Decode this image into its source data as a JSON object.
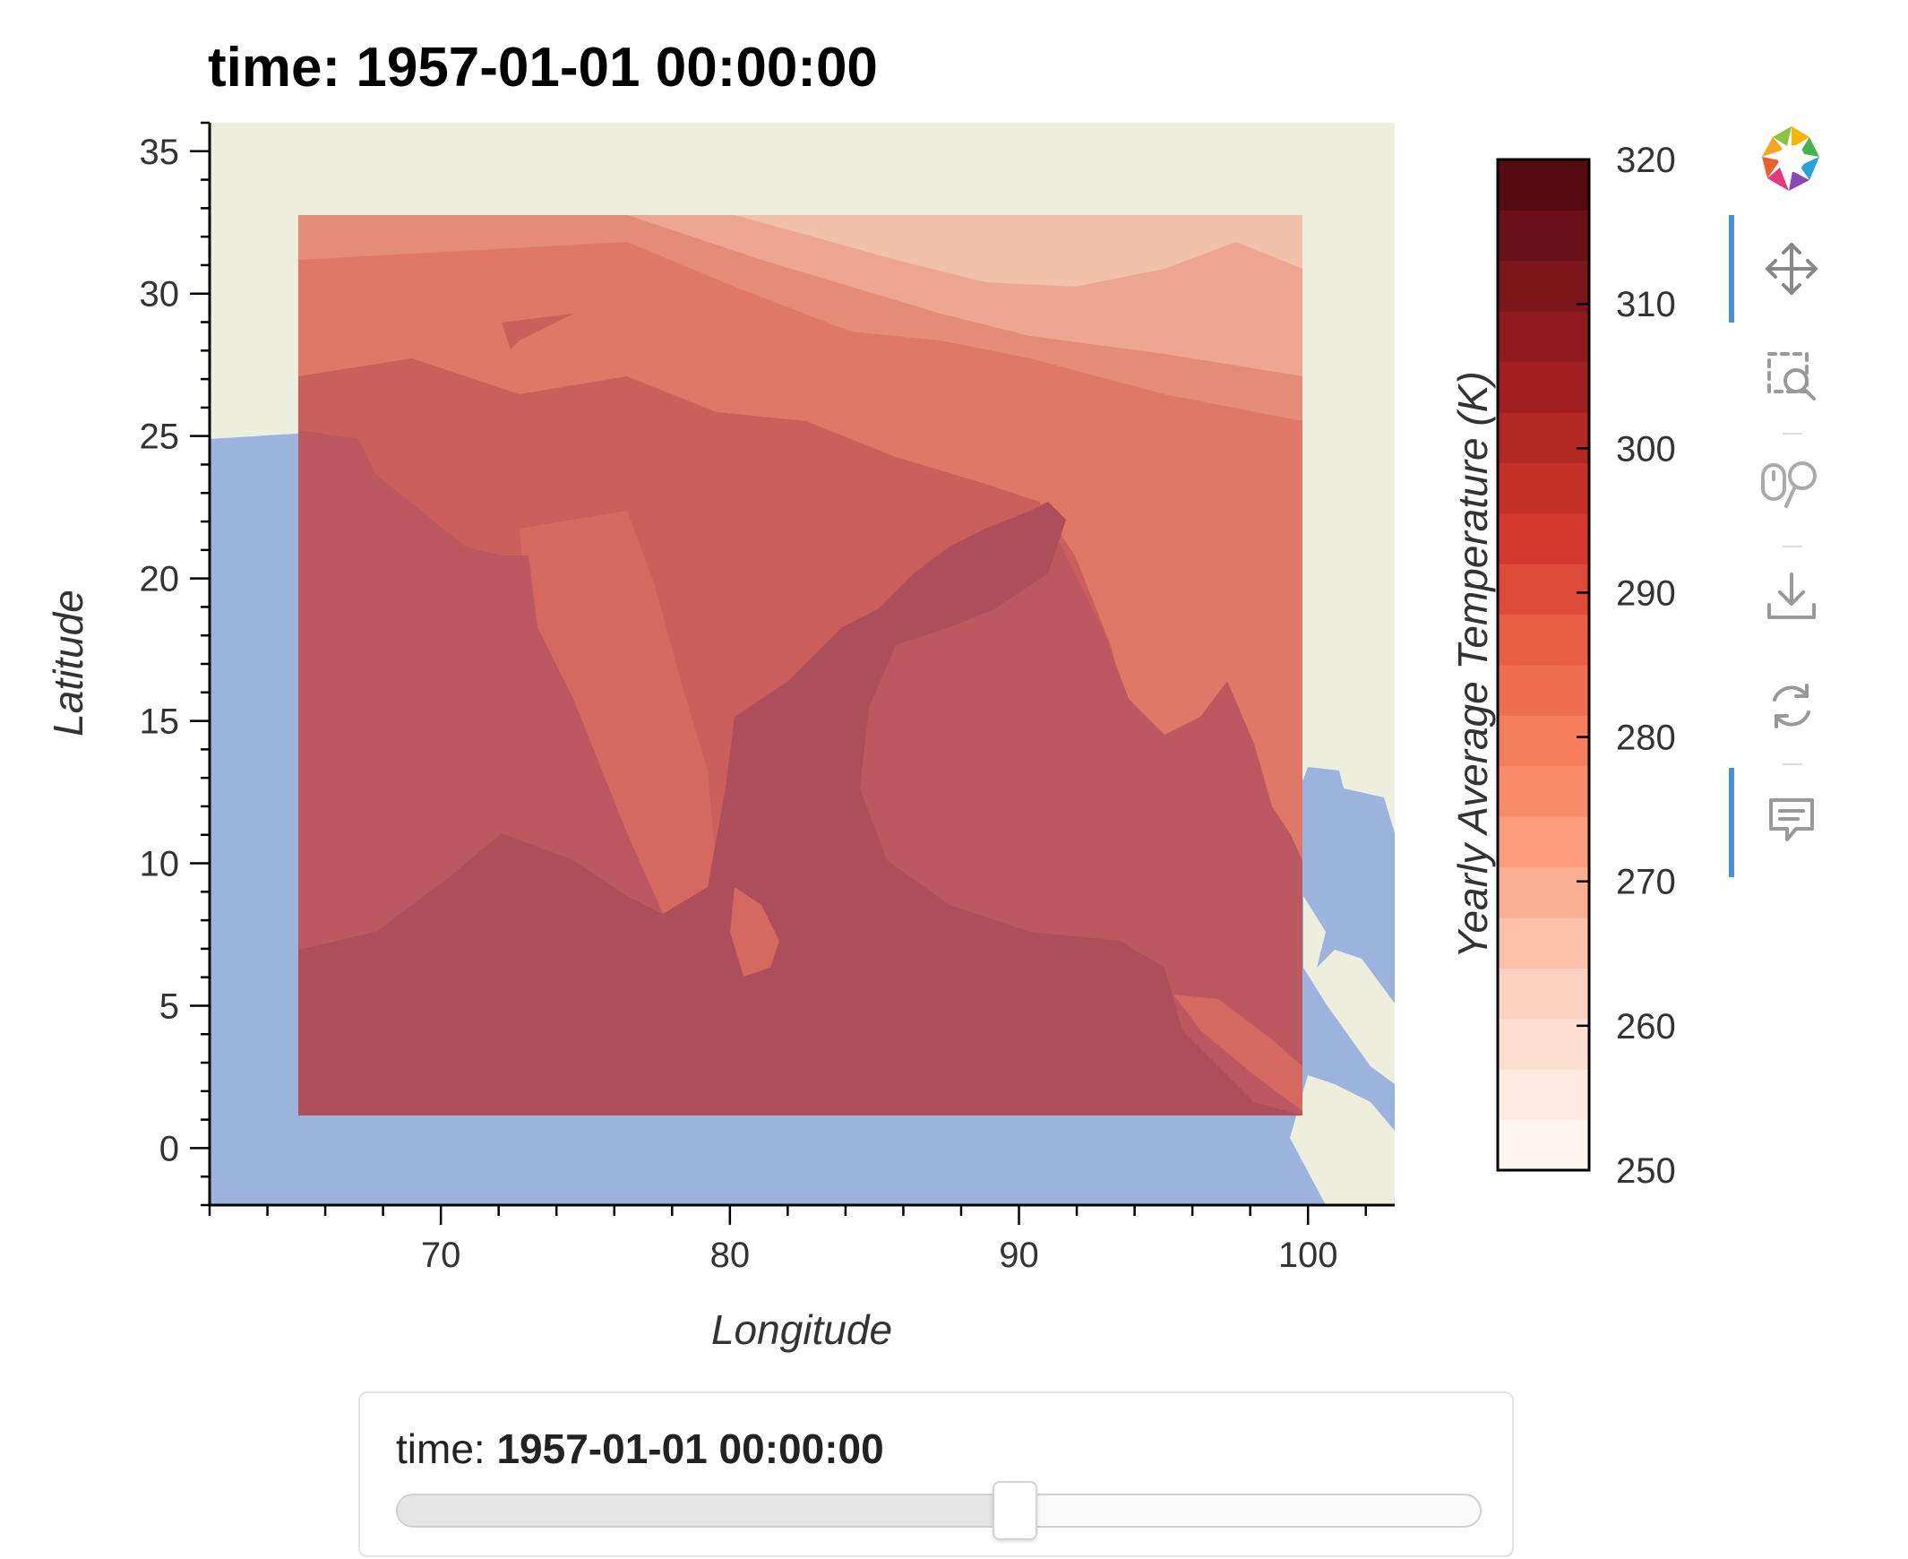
{
  "title": "time: 1957-01-01 00:00:00",
  "colors": {
    "land": "#eeeedf",
    "ocean": "#9cb3dd",
    "accent": "#4a90d9"
  },
  "toolbar": {
    "tools": [
      {
        "name": "bokeh-logo",
        "active": false
      },
      {
        "name": "pan-tool",
        "active": true
      },
      {
        "name": "box-zoom-tool",
        "active": false
      },
      {
        "name": "wheel-zoom-tool",
        "active": false
      },
      {
        "name": "save-tool",
        "active": false
      },
      {
        "name": "reset-tool",
        "active": false
      },
      {
        "name": "hover-tool",
        "active": true
      }
    ]
  },
  "slider": {
    "label": "time: ",
    "value": "1957-01-01 00:00:00",
    "position_fraction": 0.57
  },
  "chart_data": {
    "type": "heatmap",
    "subtype": "filled-contour map",
    "xlabel": "Longitude",
    "ylabel": "Latitude",
    "xlim": [
      62,
      103
    ],
    "ylim": [
      -2,
      36
    ],
    "xticks": [
      70,
      80,
      90,
      100
    ],
    "yticks": [
      0,
      5,
      10,
      15,
      20,
      25,
      30,
      35
    ],
    "data_extent": {
      "lon": [
        65,
        100
      ],
      "lat": [
        1,
        33.3
      ]
    },
    "colorbar": {
      "label": "Yearly Average Temperature (K)",
      "ticks": [
        250,
        260,
        270,
        280,
        290,
        300,
        310,
        320
      ],
      "range": [
        250,
        320
      ],
      "levels": 20,
      "colors": [
        "#fff5f0",
        "#fdebe3",
        "#fddfd2",
        "#fcd1bf",
        "#fcbfa8",
        "#fcae92",
        "#fc9c7d",
        "#f88c6a",
        "#f57e5d",
        "#ef6e50",
        "#e85f45",
        "#df4b3a",
        "#d4382f",
        "#c53028",
        "#b32823",
        "#a21f1f",
        "#901a1d",
        "#7d161b",
        "#6a1018",
        "#560b14"
      ]
    },
    "contour_fill_colors": {
      "band_272": "#f1c1aa",
      "band_276": "#eda690",
      "band_280": "#e58c78",
      "band_284": "#df7867",
      "band_288": "#d5685f",
      "band_292": "#cb5f5c",
      "band_294": "#bb5860",
      "band_298": "#ae4e5a"
    }
  }
}
